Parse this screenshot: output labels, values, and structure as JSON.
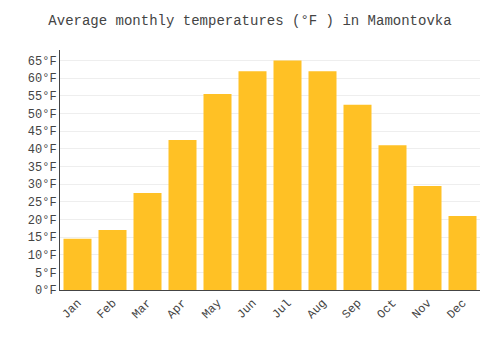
{
  "chart_data": {
    "type": "bar",
    "title": "Average monthly temperatures (°F ) in Mamontovka",
    "categories": [
      "Jan",
      "Feb",
      "Mar",
      "Apr",
      "May",
      "Jun",
      "Jul",
      "Aug",
      "Sep",
      "Oct",
      "Nov",
      "Dec"
    ],
    "values": [
      14.5,
      17.0,
      27.5,
      42.5,
      55.5,
      62.0,
      65.0,
      62.0,
      52.5,
      41.0,
      29.5,
      21.0
    ],
    "color": "#FFC125",
    "ylim": [
      0,
      68
    ],
    "yticks": [
      {
        "value": 0,
        "label": "0°F"
      },
      {
        "value": 5,
        "label": "5°F"
      },
      {
        "value": 10,
        "label": "10°F"
      },
      {
        "value": 15,
        "label": "15°F"
      },
      {
        "value": 20,
        "label": "20°F"
      },
      {
        "value": 25,
        "label": "25°F"
      },
      {
        "value": 30,
        "label": "30°F"
      },
      {
        "value": 35,
        "label": "35°F"
      },
      {
        "value": 40,
        "label": "40°F"
      },
      {
        "value": 45,
        "label": "45°F"
      },
      {
        "value": 50,
        "label": "50°F"
      },
      {
        "value": 55,
        "label": "55°F"
      },
      {
        "value": 60,
        "label": "60°F"
      },
      {
        "value": 65,
        "label": "65°F"
      }
    ],
    "grid": true
  }
}
